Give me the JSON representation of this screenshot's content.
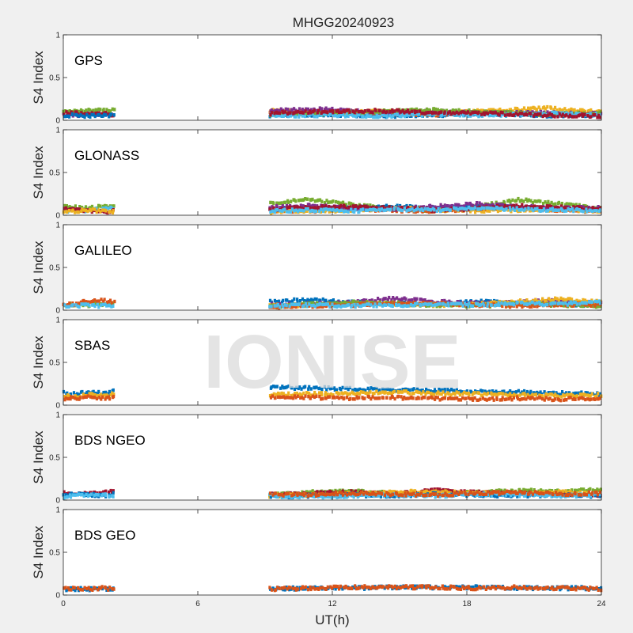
{
  "chart_data": {
    "type": "scatter",
    "title": "MHGG20240923",
    "xlabel": "UT(h)",
    "ylabel": "S4 Index",
    "xlim": [
      0,
      24
    ],
    "ylim": [
      0,
      1
    ],
    "xticks": [
      "0",
      "6",
      "12",
      "18",
      "24"
    ],
    "yticks": [
      "0",
      "0.5",
      "1"
    ],
    "watermark": "IONISE",
    "colors": [
      "#0072bd",
      "#d95319",
      "#edb120",
      "#7e2f8e",
      "#77ac30",
      "#4dbeee",
      "#a2142f"
    ],
    "panels": [
      {
        "label": "GPS",
        "segments": [
          {
            "start": 0,
            "end": 2.3,
            "series": [
              {
                "color": "#7e2f8e",
                "y": [
                  0.07,
                  0.06,
                  0.08,
                  0.07,
                  0.06
                ]
              },
              {
                "color": "#77ac30",
                "y": [
                  0.1,
                  0.12,
                  0.11,
                  0.13,
                  0.12
                ]
              },
              {
                "color": "#a2142f",
                "y": [
                  0.08,
                  0.09,
                  0.07,
                  0.08,
                  0.06
                ]
              },
              {
                "color": "#0072bd",
                "y": [
                  0.05,
                  0.06,
                  0.05,
                  0.06,
                  0.05
                ]
              }
            ]
          },
          {
            "start": 9.2,
            "end": 24,
            "series": [
              {
                "color": "#0072bd",
                "y": [
                  0.06,
                  0.07,
                  0.05,
                  0.06,
                  0.08,
                  0.05,
                  0.06
                ]
              },
              {
                "color": "#d95319",
                "y": [
                  0.09,
                  0.1,
                  0.08,
                  0.07,
                  0.09,
                  0.08,
                  0.07
                ]
              },
              {
                "color": "#edb120",
                "y": [
                  0.12,
                  0.09,
                  0.1,
                  0.08,
                  0.11,
                  0.14,
                  0.1
                ]
              },
              {
                "color": "#7e2f8e",
                "y": [
                  0.11,
                  0.13,
                  0.09,
                  0.1,
                  0.08,
                  0.09,
                  0.07
                ]
              },
              {
                "color": "#77ac30",
                "y": [
                  0.07,
                  0.08,
                  0.1,
                  0.12,
                  0.09,
                  0.07,
                  0.08
                ]
              },
              {
                "color": "#4dbeee",
                "y": [
                  0.05,
                  0.06,
                  0.05,
                  0.07,
                  0.06,
                  0.08,
                  0.06
                ]
              },
              {
                "color": "#a2142f",
                "y": [
                  0.08,
                  0.1,
                  0.11,
                  0.09,
                  0.08,
                  0.06,
                  0.05
                ]
              }
            ]
          }
        ]
      },
      {
        "label": "GLONASS",
        "segments": [
          {
            "start": 0,
            "end": 2.3,
            "series": [
              {
                "color": "#77ac30",
                "y": [
                  0.11,
                  0.09,
                  0.08,
                  0.1,
                  0.12
                ]
              },
              {
                "color": "#4dbeee",
                "y": [
                  0.05,
                  0.06,
                  0.05,
                  0.07,
                  0.08
                ]
              },
              {
                "color": "#a2142f",
                "y": [
                  0.07,
                  0.06,
                  0.05,
                  0.04,
                  0.05
                ]
              },
              {
                "color": "#edb120",
                "y": [
                  0.04,
                  0.05,
                  0.06,
                  0.05,
                  0.04
                ]
              }
            ]
          },
          {
            "start": 9.2,
            "end": 24,
            "series": [
              {
                "color": "#77ac30",
                "y": [
                  0.15,
                  0.18,
                  0.12,
                  0.08,
                  0.06,
                  0.1,
                  0.18,
                  0.13,
                  0.08
                ]
              },
              {
                "color": "#0072bd",
                "y": [
                  0.08,
                  0.07,
                  0.09,
                  0.1,
                  0.08,
                  0.11,
                  0.09,
                  0.07,
                  0.06
                ]
              },
              {
                "color": "#d95319",
                "y": [
                  0.06,
                  0.05,
                  0.07,
                  0.06,
                  0.05,
                  0.07,
                  0.08,
                  0.06,
                  0.05
                ]
              },
              {
                "color": "#edb120",
                "y": [
                  0.04,
                  0.05,
                  0.06,
                  0.08,
                  0.07,
                  0.05,
                  0.06,
                  0.07,
                  0.05
                ]
              },
              {
                "color": "#7e2f8e",
                "y": [
                  0.09,
                  0.11,
                  0.08,
                  0.07,
                  0.1,
                  0.13,
                  0.1,
                  0.08,
                  0.09
                ]
              },
              {
                "color": "#a2142f",
                "y": [
                  0.07,
                  0.09,
                  0.1,
                  0.08,
                  0.06,
                  0.08,
                  0.11,
                  0.09,
                  0.07
                ]
              },
              {
                "color": "#4dbeee",
                "y": [
                  0.05,
                  0.06,
                  0.05,
                  0.07,
                  0.06,
                  0.08,
                  0.07,
                  0.06,
                  0.05
                ]
              }
            ]
          }
        ]
      },
      {
        "label": "GALILEO",
        "segments": [
          {
            "start": 0,
            "end": 2.3,
            "series": [
              {
                "color": "#77ac30",
                "y": [
                  0.07,
                  0.06,
                  0.06,
                  0.07,
                  0.07
                ]
              },
              {
                "color": "#d95319",
                "y": [
                  0.06,
                  0.07,
                  0.11,
                  0.12,
                  0.09
                ]
              },
              {
                "color": "#4dbeee",
                "y": [
                  0.05,
                  0.05,
                  0.06,
                  0.05,
                  0.06
                ]
              }
            ]
          },
          {
            "start": 9.2,
            "end": 24,
            "series": [
              {
                "color": "#0072bd",
                "y": [
                  0.1,
                  0.12,
                  0.09,
                  0.08,
                  0.07,
                  0.1,
                  0.09,
                  0.07,
                  0.06
                ]
              },
              {
                "color": "#7e2f8e",
                "y": [
                  0.06,
                  0.07,
                  0.09,
                  0.14,
                  0.1,
                  0.08,
                  0.09,
                  0.11,
                  0.08
                ]
              },
              {
                "color": "#edb120",
                "y": [
                  0.05,
                  0.06,
                  0.08,
                  0.07,
                  0.06,
                  0.07,
                  0.1,
                  0.13,
                  0.09
                ]
              },
              {
                "color": "#77ac30",
                "y": [
                  0.04,
                  0.07,
                  0.09,
                  0.08,
                  0.06,
                  0.05,
                  0.07,
                  0.06,
                  0.05
                ]
              },
              {
                "color": "#d95319",
                "y": [
                  0.04,
                  0.05,
                  0.06,
                  0.07,
                  0.08,
                  0.06,
                  0.05,
                  0.07,
                  0.06
                ]
              },
              {
                "color": "#4dbeee",
                "y": [
                  0.05,
                  0.06,
                  0.05,
                  0.06,
                  0.07,
                  0.06,
                  0.08,
                  0.07,
                  0.1
                ]
              }
            ]
          }
        ]
      },
      {
        "label": "SBAS",
        "segments": [
          {
            "start": 0,
            "end": 2.3,
            "series": [
              {
                "color": "#0072bd",
                "y": [
                  0.14,
                  0.13,
                  0.15,
                  0.14,
                  0.16
                ]
              },
              {
                "color": "#edb120",
                "y": [
                  0.11,
                  0.1,
                  0.12,
                  0.11,
                  0.13
                ]
              },
              {
                "color": "#d95319",
                "y": [
                  0.08,
                  0.08,
                  0.09,
                  0.08,
                  0.09
                ]
              }
            ]
          },
          {
            "start": 9.2,
            "end": 24,
            "series": [
              {
                "color": "#0072bd",
                "y": [
                  0.21,
                  0.2,
                  0.19,
                  0.18,
                  0.17,
                  0.16,
                  0.15,
                  0.14,
                  0.13
                ]
              },
              {
                "color": "#edb120",
                "y": [
                  0.12,
                  0.13,
                  0.14,
                  0.15,
                  0.14,
                  0.13,
                  0.12,
                  0.11,
                  0.12
                ]
              },
              {
                "color": "#d95319",
                "y": [
                  0.09,
                  0.09,
                  0.08,
                  0.09,
                  0.08,
                  0.07,
                  0.08,
                  0.07,
                  0.08
                ]
              }
            ]
          }
        ]
      },
      {
        "label": "BDS NGEO",
        "segments": [
          {
            "start": 0,
            "end": 2.3,
            "series": [
              {
                "color": "#a2142f",
                "y": [
                  0.09,
                  0.08,
                  0.07,
                  0.09,
                  0.1
                ]
              },
              {
                "color": "#0072bd",
                "y": [
                  0.06,
                  0.07,
                  0.06,
                  0.05,
                  0.07
                ]
              },
              {
                "color": "#4dbeee",
                "y": [
                  0.04,
                  0.05,
                  0.05,
                  0.06,
                  0.05
                ]
              }
            ]
          },
          {
            "start": 9.2,
            "end": 24,
            "series": [
              {
                "color": "#77ac30",
                "y": [
                  0.07,
                  0.09,
                  0.1,
                  0.08,
                  0.07,
                  0.09,
                  0.11,
                  0.1,
                  0.12
                ]
              },
              {
                "color": "#a2142f",
                "y": [
                  0.06,
                  0.08,
                  0.09,
                  0.07,
                  0.12,
                  0.09,
                  0.08,
                  0.07,
                  0.06
                ]
              },
              {
                "color": "#edb120",
                "y": [
                  0.05,
                  0.06,
                  0.07,
                  0.09,
                  0.1,
                  0.08,
                  0.07,
                  0.09,
                  0.08
                ]
              },
              {
                "color": "#0072bd",
                "y": [
                  0.04,
                  0.05,
                  0.06,
                  0.05,
                  0.07,
                  0.06,
                  0.05,
                  0.06,
                  0.05
                ]
              },
              {
                "color": "#4dbeee",
                "y": [
                  0.05,
                  0.04,
                  0.05,
                  0.06,
                  0.05,
                  0.07,
                  0.06,
                  0.05,
                  0.06
                ]
              },
              {
                "color": "#d95319",
                "y": [
                  0.07,
                  0.06,
                  0.08,
                  0.07,
                  0.06,
                  0.08,
                  0.09,
                  0.07,
                  0.08
                ]
              }
            ]
          }
        ]
      },
      {
        "label": "BDS GEO",
        "segments": [
          {
            "start": 0,
            "end": 2.3,
            "series": [
              {
                "color": "#0072bd",
                "y": [
                  0.07,
                  0.07,
                  0.07,
                  0.07,
                  0.07
                ]
              },
              {
                "color": "#d95319",
                "y": [
                  0.07,
                  0.08,
                  0.07,
                  0.08,
                  0.07
                ]
              }
            ]
          },
          {
            "start": 9.2,
            "end": 24,
            "series": [
              {
                "color": "#0072bd",
                "y": [
                  0.07,
                  0.08,
                  0.08,
                  0.09,
                  0.09,
                  0.09,
                  0.08,
                  0.08,
                  0.08
                ]
              },
              {
                "color": "#d95319",
                "y": [
                  0.07,
                  0.08,
                  0.09,
                  0.09,
                  0.09,
                  0.08,
                  0.09,
                  0.08,
                  0.07
                ]
              }
            ]
          }
        ]
      }
    ]
  }
}
